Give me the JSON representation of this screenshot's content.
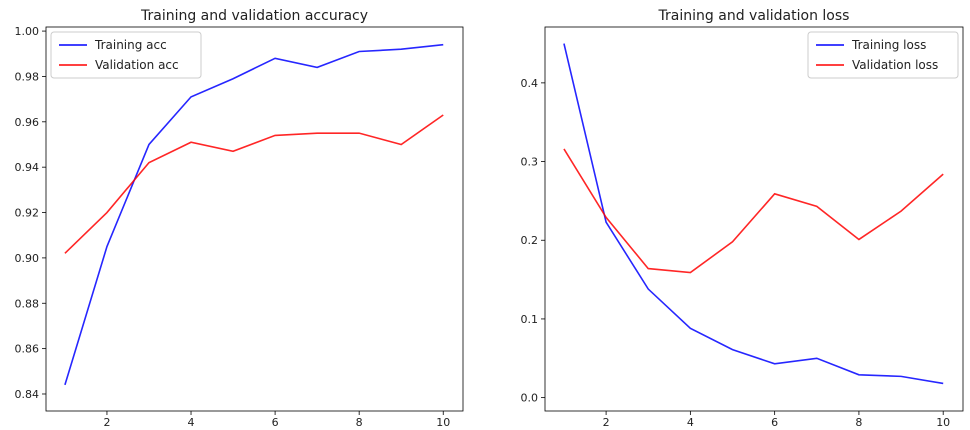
{
  "chart_data": [
    {
      "type": "line",
      "title": "Training and validation accuracy",
      "xlabel": "",
      "ylabel": "",
      "x": [
        1,
        2,
        3,
        4,
        5,
        6,
        7,
        8,
        9,
        10
      ],
      "xlim": [
        0.55,
        10.47
      ],
      "ylim": [
        0.8325,
        1.0018
      ],
      "xticks": [
        2,
        4,
        6,
        8,
        10
      ],
      "yticks": [
        0.84,
        0.86,
        0.88,
        0.9,
        0.92,
        0.94,
        0.96,
        0.98,
        1.0
      ],
      "ytick_labels": [
        "0.84",
        "0.86",
        "0.88",
        "0.90",
        "0.92",
        "0.94",
        "0.96",
        "0.98",
        "1.00"
      ],
      "grid": false,
      "legend_position": "top-left",
      "series": [
        {
          "name": "Training acc",
          "color": "#0000ff",
          "values": [
            0.844,
            0.905,
            0.95,
            0.971,
            0.979,
            0.988,
            0.984,
            0.991,
            0.992,
            0.994
          ]
        },
        {
          "name": "Validation acc",
          "color": "#ff0000",
          "values": [
            0.902,
            0.92,
            0.942,
            0.951,
            0.947,
            0.954,
            0.955,
            0.955,
            0.95,
            0.963
          ]
        }
      ]
    },
    {
      "type": "line",
      "title": "Training and validation loss",
      "xlabel": "",
      "ylabel": "",
      "x": [
        1,
        2,
        3,
        4,
        5,
        6,
        7,
        8,
        9,
        10
      ],
      "xlim": [
        0.55,
        10.47
      ],
      "ylim": [
        -0.017,
        0.471
      ],
      "xticks": [
        2,
        4,
        6,
        8,
        10
      ],
      "yticks": [
        0.0,
        0.1,
        0.2,
        0.3,
        0.4
      ],
      "ytick_labels": [
        "0.0",
        "0.1",
        "0.2",
        "0.3",
        "0.4"
      ],
      "grid": false,
      "legend_position": "top-right",
      "series": [
        {
          "name": "Training loss",
          "color": "#0000ff",
          "values": [
            0.45,
            0.223,
            0.138,
            0.088,
            0.061,
            0.043,
            0.05,
            0.029,
            0.027,
            0.018
          ]
        },
        {
          "name": "Validation loss",
          "color": "#ff0000",
          "values": [
            0.316,
            0.229,
            0.164,
            0.159,
            0.198,
            0.259,
            0.243,
            0.201,
            0.237,
            0.284
          ]
        }
      ]
    }
  ]
}
